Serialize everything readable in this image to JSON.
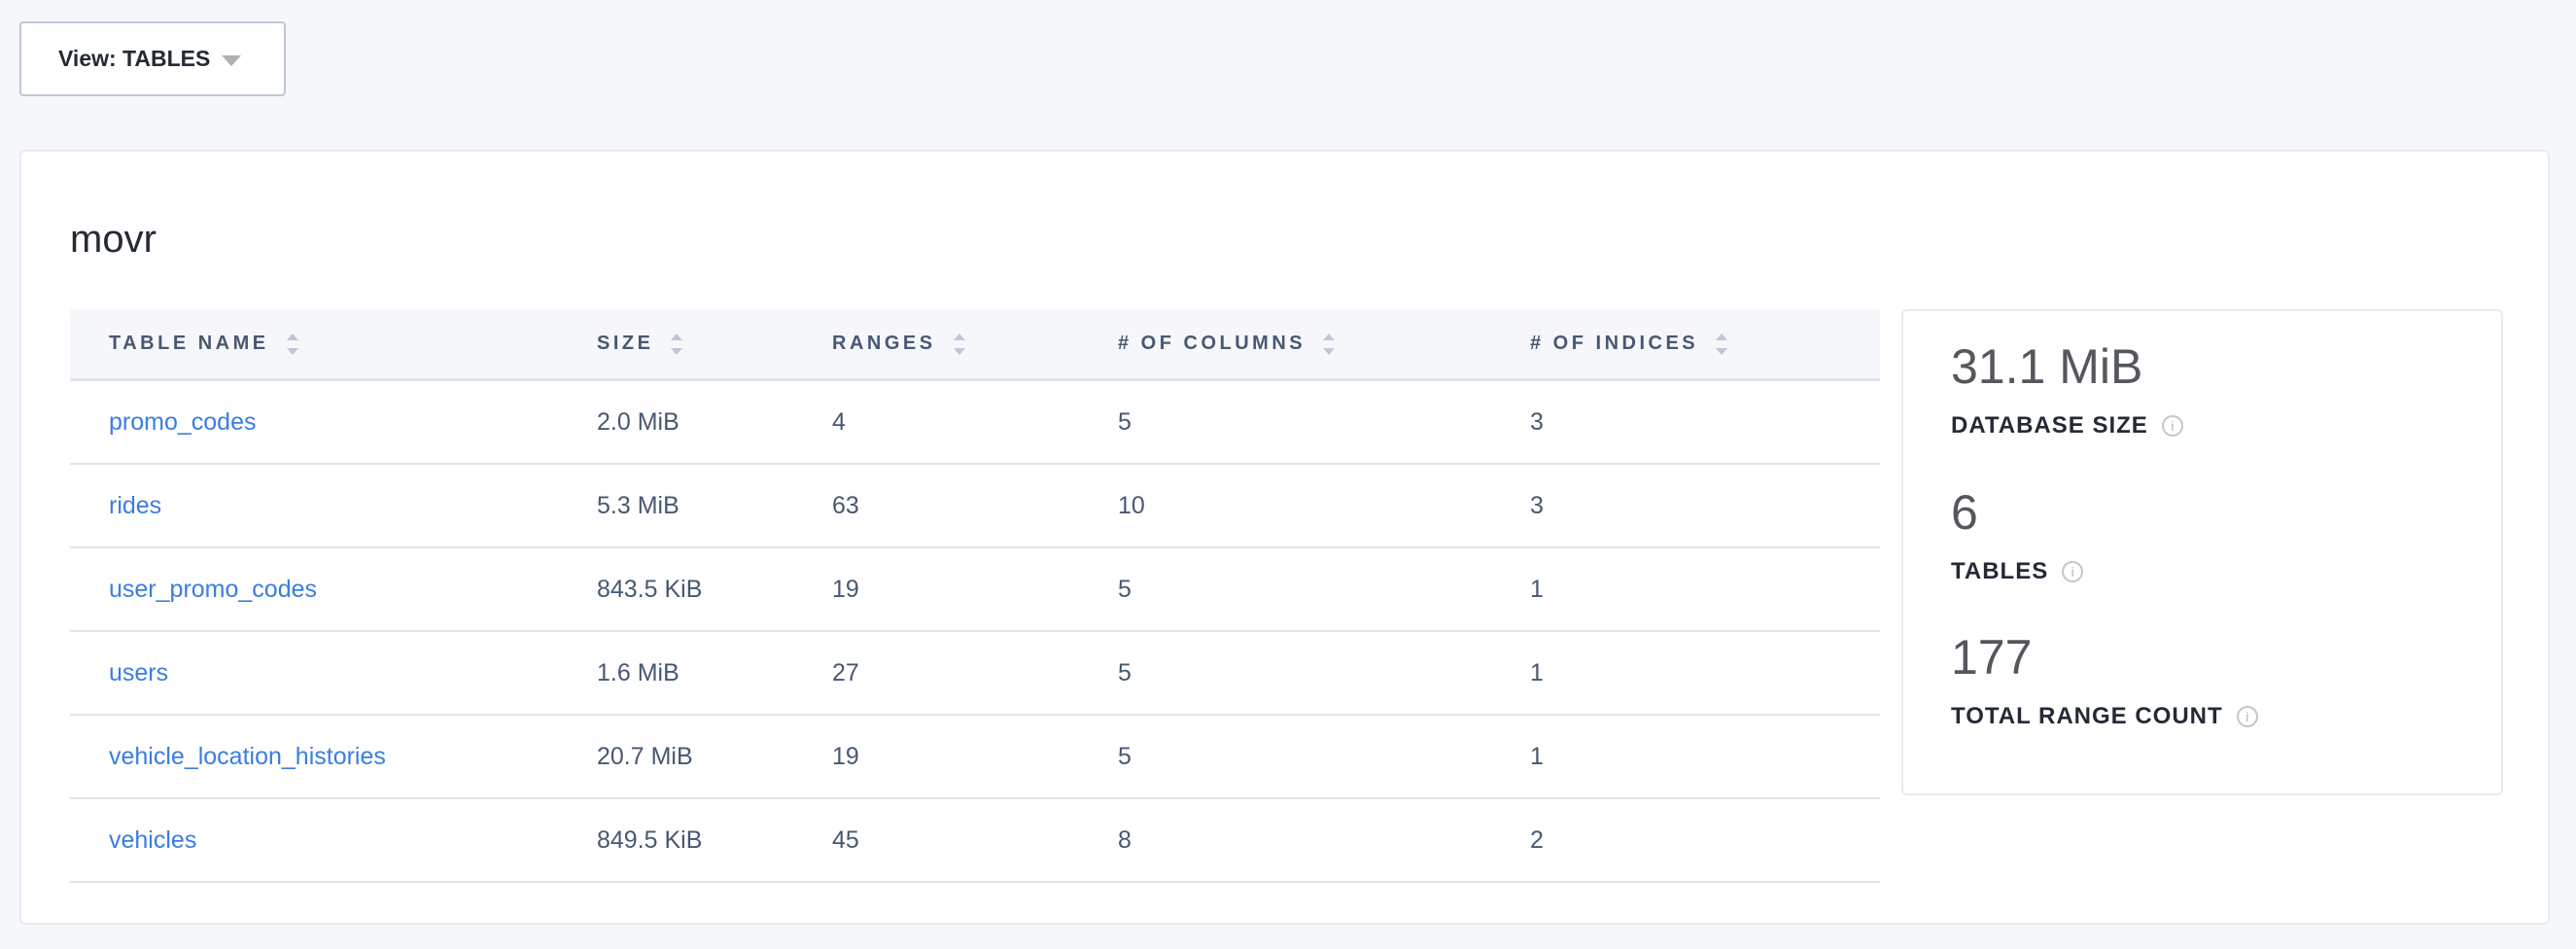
{
  "view_selector": {
    "label": "View: TABLES",
    "icon": "caret-down-icon"
  },
  "database": {
    "name": "movr"
  },
  "table": {
    "columns": [
      "TABLE NAME",
      "SIZE",
      "RANGES",
      "# OF COLUMNS",
      "# OF INDICES"
    ],
    "rows": [
      [
        "promo_codes",
        "2.0 MiB",
        "4",
        "5",
        "3"
      ],
      [
        "rides",
        "5.3 MiB",
        "63",
        "10",
        "3"
      ],
      [
        "user_promo_codes",
        "843.5 KiB",
        "19",
        "5",
        "1"
      ],
      [
        "users",
        "1.6 MiB",
        "27",
        "5",
        "1"
      ],
      [
        "vehicle_location_histories",
        "20.7 MiB",
        "19",
        "5",
        "1"
      ],
      [
        "vehicles",
        "849.5 KiB",
        "45",
        "8",
        "2"
      ]
    ]
  },
  "stats": [
    {
      "value": "31.1 MiB",
      "label": "DATABASE SIZE",
      "icon": "info-icon"
    },
    {
      "value": "6",
      "label": "TABLES",
      "icon": "info-icon"
    },
    {
      "value": "177",
      "label": "TOTAL RANGE COUNT",
      "icon": "info-icon"
    }
  ],
  "colors": {
    "link": "#3a7de1",
    "header_text": "#475872",
    "background": "#f5f7fa"
  }
}
